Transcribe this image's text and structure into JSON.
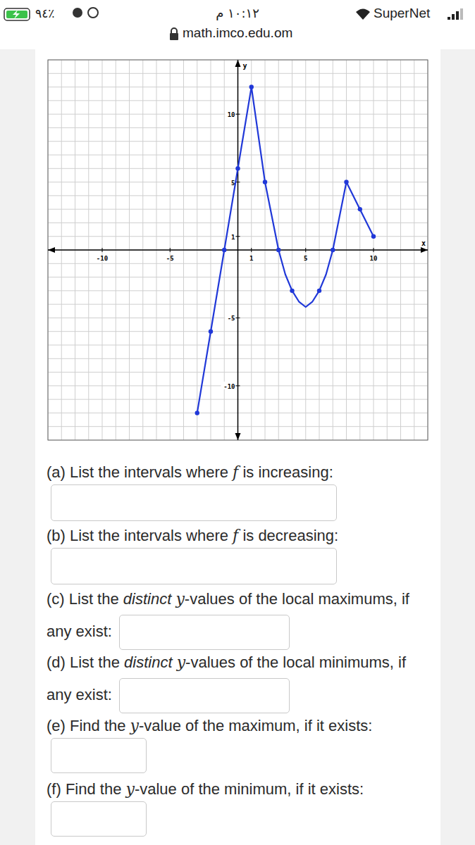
{
  "status_bar": {
    "battery": "٪٩٤",
    "time": "١٠:١٢ م",
    "carrier": "SuperNet"
  },
  "url": "math.imco.edu.om",
  "chart_data": {
    "type": "line",
    "x_label": "x",
    "y_label": "y",
    "xlim": [
      -14,
      14
    ],
    "ylim": [
      -14,
      14
    ],
    "xticks": [
      -10,
      -5,
      1,
      5,
      10
    ],
    "yticks": [
      -10,
      -5,
      1,
      5,
      10
    ],
    "grid": true,
    "series": [
      {
        "color": "#2038d8",
        "marker": "none",
        "line_style": "solid",
        "x": [
          -3,
          -2,
          -1,
          0,
          1,
          2,
          3,
          3.5,
          4,
          4.5,
          5,
          5.5,
          6,
          6.5,
          7,
          8,
          9,
          10
        ],
        "values": [
          -12,
          -6,
          0,
          6,
          12,
          5,
          0,
          -1.8,
          -3,
          -3.8,
          -4.2,
          -3.8,
          -3,
          -1.8,
          0,
          5,
          3,
          1
        ]
      },
      {
        "color": "#2038d8",
        "marker": "circle",
        "line_style": "none",
        "x": [
          -3,
          -2,
          -1,
          0,
          1,
          2,
          3,
          4,
          6,
          7,
          8,
          9,
          10
        ],
        "values": [
          -12,
          -6,
          0,
          6,
          12,
          5,
          0,
          -3,
          -3,
          0,
          5,
          3,
          1
        ]
      }
    ]
  },
  "questions": [
    {
      "parts": [
        "(a) List the intervals where ",
        "f",
        " is increasing:"
      ]
    },
    {
      "parts": [
        "(b) List the intervals where ",
        "f",
        " is decreasing:"
      ]
    },
    {
      "parts": [
        "(c) List the ",
        "distinct",
        " ",
        "y",
        "-values of the local maximums, if any exist:"
      ]
    },
    {
      "parts": [
        "(d) List the ",
        "distinct",
        " ",
        "y",
        "-values of the local minimums, if any exist:"
      ]
    },
    {
      "parts": [
        "(e) Find the ",
        "y",
        "-value of the maximum, if it exists:"
      ]
    },
    {
      "parts": [
        "(f) Find the ",
        "y",
        "-value of the minimum, if it exists:"
      ]
    }
  ]
}
